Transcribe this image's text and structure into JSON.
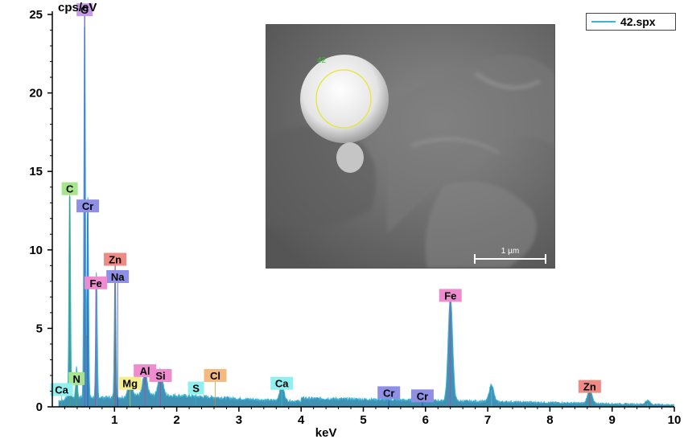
{
  "chart_data": {
    "type": "line",
    "title": "",
    "xlabel": "keV",
    "ylabel": "cps/eV",
    "xlim": [
      0,
      10
    ],
    "ylim": [
      0,
      25
    ],
    "x_ticks": [
      "1",
      "2",
      "3",
      "4",
      "5",
      "6",
      "7",
      "8",
      "9",
      "10"
    ],
    "y_ticks": [
      "0",
      "5",
      "10",
      "15",
      "20",
      "25"
    ],
    "legend": {
      "position": "top-right",
      "entries": [
        "42.spx"
      ]
    },
    "series": [
      {
        "name": "42.spx",
        "color": "#3bb4d8",
        "fill": "#1f7ea6",
        "peaks": [
          {
            "x": 0.28,
            "y": 13.4
          },
          {
            "x": 0.39,
            "y": 2.0
          },
          {
            "x": 0.52,
            "y": 25.0
          },
          {
            "x": 0.57,
            "y": 12.9
          },
          {
            "x": 0.71,
            "y": 8.0
          },
          {
            "x": 1.01,
            "y": 8.6
          },
          {
            "x": 1.25,
            "y": 1.0
          },
          {
            "x": 1.49,
            "y": 1.4
          },
          {
            "x": 1.74,
            "y": 1.6
          },
          {
            "x": 3.69,
            "y": 1.0
          },
          {
            "x": 6.4,
            "y": 6.7
          },
          {
            "x": 7.06,
            "y": 1.1
          },
          {
            "x": 8.64,
            "y": 0.9
          },
          {
            "x": 9.57,
            "y": 0.25
          }
        ]
      }
    ],
    "element_labels": [
      {
        "text": "O",
        "color": "#c59be6",
        "x": 0.52,
        "y": 25.3
      },
      {
        "text": "C",
        "color": "#a6e58c",
        "x": 0.28,
        "y": 13.9
      },
      {
        "text": "Cr",
        "color": "#8f8fe6",
        "x": 0.57,
        "y": 12.8
      },
      {
        "text": "Zn",
        "color": "#ef8a84",
        "x": 1.01,
        "y": 9.4
      },
      {
        "text": "Na",
        "color": "#8f8fe6",
        "x": 1.05,
        "y": 8.3
      },
      {
        "text": "Fe",
        "color": "#ef8ccf",
        "x": 0.7,
        "y": 7.9
      },
      {
        "text": "Fe",
        "color": "#ef8ccf",
        "x": 6.4,
        "y": 7.1
      },
      {
        "text": "Al",
        "color": "#ef8ccf",
        "x": 1.49,
        "y": 2.3
      },
      {
        "text": "Si",
        "color": "#ef8ccf",
        "x": 1.74,
        "y": 2.0
      },
      {
        "text": "Cl",
        "color": "#f4b97c",
        "x": 2.62,
        "y": 2.0
      },
      {
        "text": "N",
        "color": "#a6e58c",
        "x": 0.39,
        "y": 1.8
      },
      {
        "text": "Mg",
        "color": "#f4ee8c",
        "x": 1.25,
        "y": 1.5
      },
      {
        "text": "S",
        "color": "#8ff0ef",
        "x": 2.31,
        "y": 1.2
      },
      {
        "text": "Ca",
        "color": "#8ff0ef",
        "x": 3.69,
        "y": 1.5
      },
      {
        "text": "Ca",
        "color": "#8ff0ef",
        "x": 0.15,
        "y": 1.1
      },
      {
        "text": "Cr",
        "color": "#8f8fe6",
        "x": 5.41,
        "y": 0.9
      },
      {
        "text": "Cr",
        "color": "#8f8fe6",
        "x": 5.95,
        "y": 0.7
      },
      {
        "text": "Zn",
        "color": "#ef8a84",
        "x": 8.64,
        "y": 1.3
      }
    ],
    "inset_image": {
      "description": "SEM micrograph",
      "spot_label": "42",
      "scale_bar": "1 µm"
    }
  }
}
